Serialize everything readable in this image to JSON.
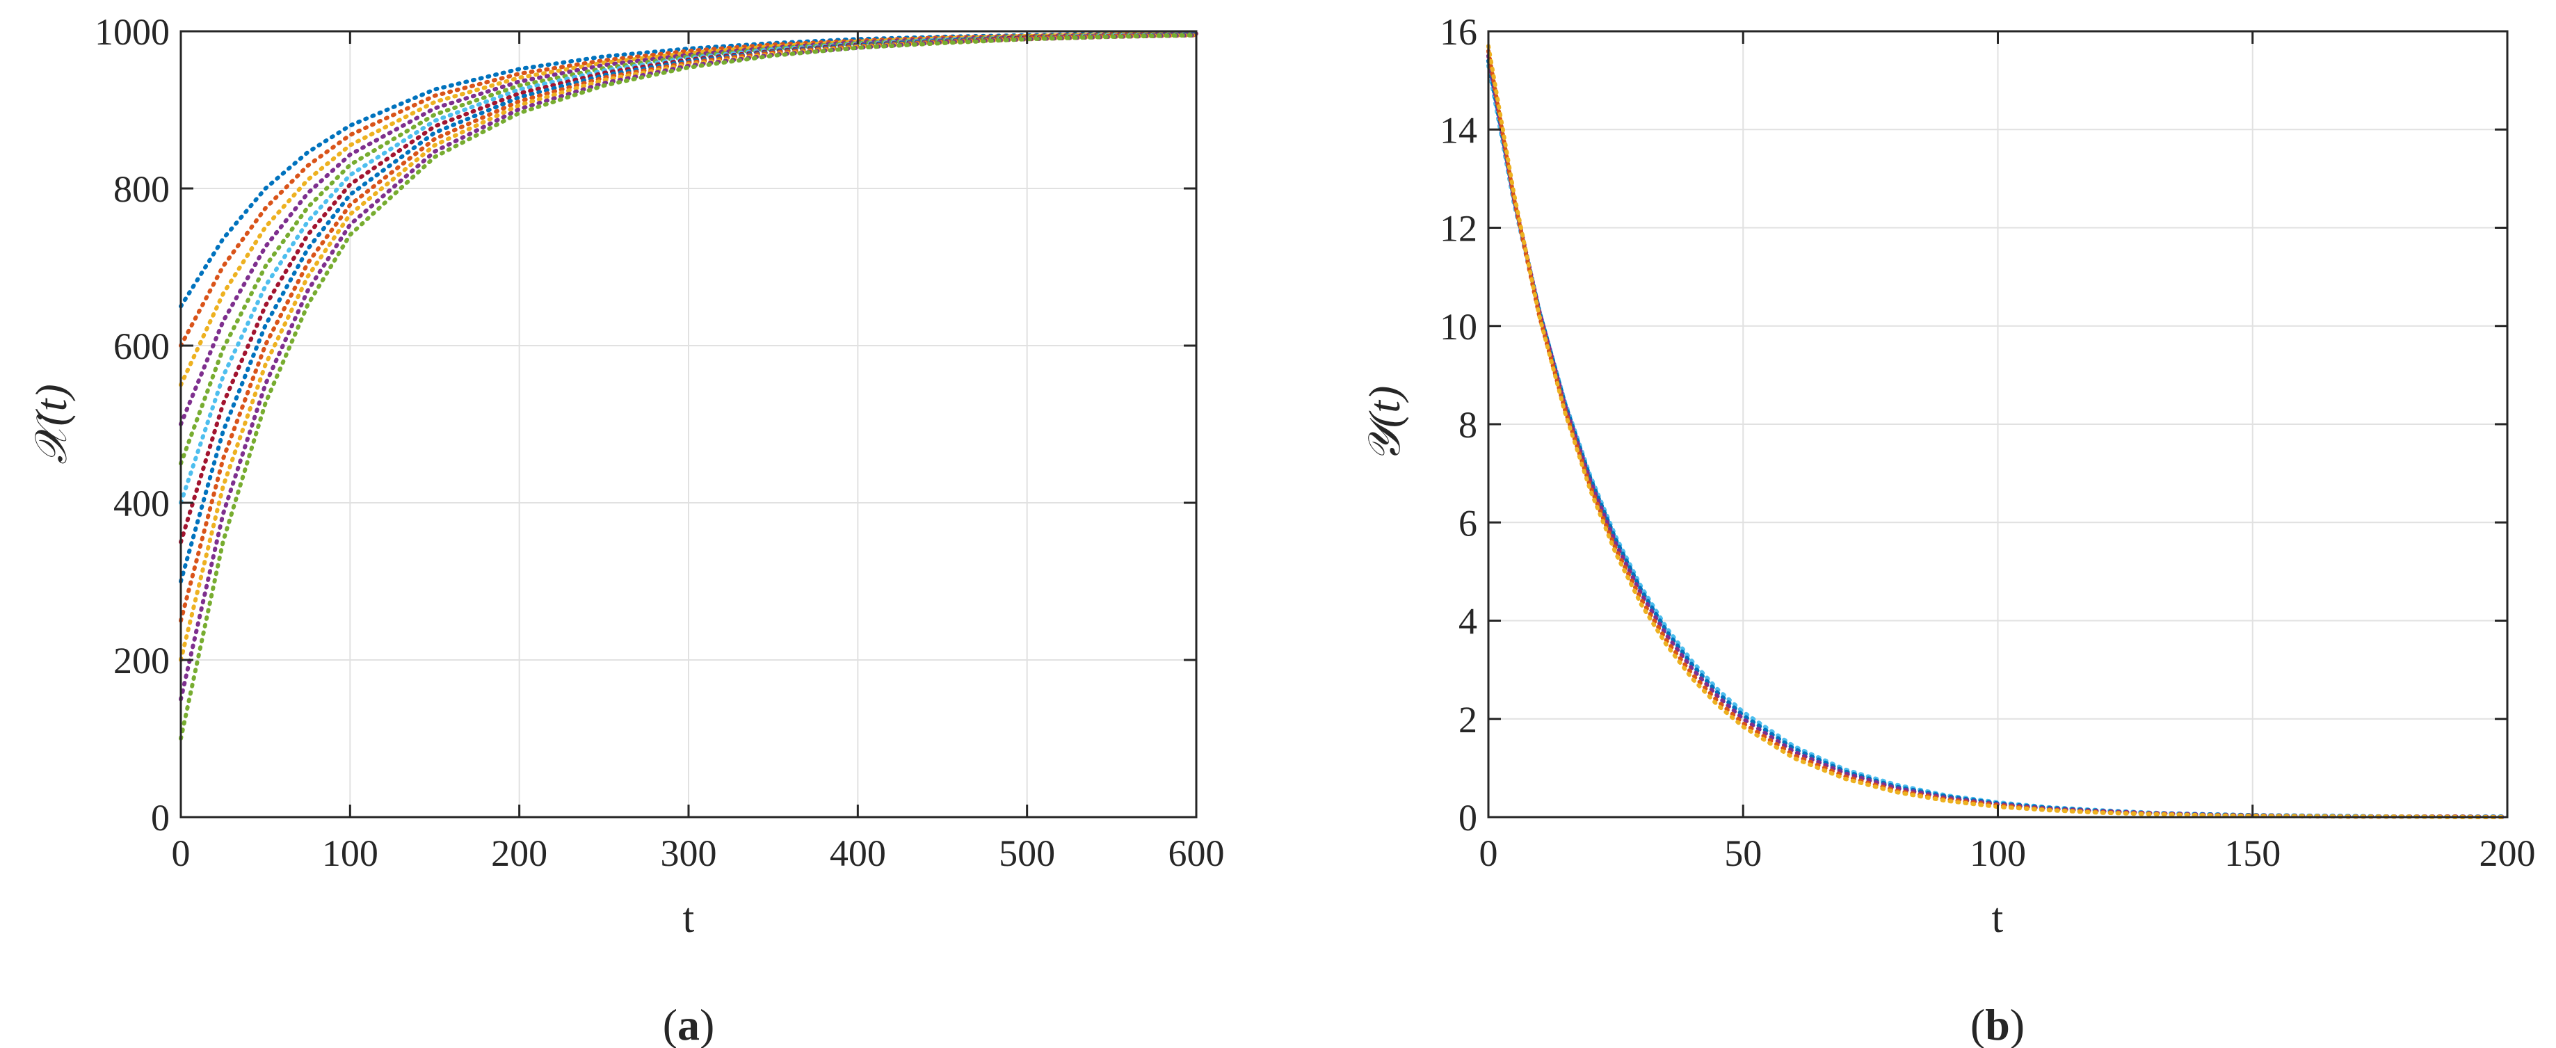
{
  "chart_data": [
    {
      "type": "line",
      "panel_caption": {
        "open": "(",
        "letter": "a",
        "close": ")"
      },
      "xlabel": "t",
      "ylabel_symbol": "𝒳",
      "ylabel_arg": "(t)",
      "xlim": [
        0,
        600
      ],
      "ylim": [
        0,
        1000
      ],
      "xticks": [
        0,
        100,
        200,
        300,
        400,
        500,
        600
      ],
      "yticks": [
        0,
        200,
        400,
        600,
        800,
        1000
      ],
      "grid": true,
      "line_style": "dotted",
      "x": [
        0,
        25,
        50,
        75,
        100,
        150,
        200,
        250,
        300,
        350,
        400,
        450,
        500,
        550,
        600
      ],
      "series": [
        {
          "color": "#0072BD",
          "values": [
            650,
            736,
            800,
            846,
            880,
            926,
            952,
            968,
            978,
            985,
            990,
            993,
            995,
            997,
            998
          ]
        },
        {
          "color": "#D95319",
          "values": [
            600,
            701,
            775,
            829,
            868,
            918,
            946,
            963,
            975,
            983,
            988,
            992,
            994,
            996,
            997
          ]
        },
        {
          "color": "#EDB120",
          "values": [
            550,
            666,
            751,
            811,
            855,
            910,
            941,
            960,
            972,
            981,
            987,
            991,
            994,
            996,
            997
          ]
        },
        {
          "color": "#7E2F8E",
          "values": [
            500,
            631,
            726,
            794,
            843,
            902,
            936,
            957,
            970,
            979,
            986,
            990,
            993,
            995,
            997
          ]
        },
        {
          "color": "#77AC30",
          "values": [
            450,
            596,
            701,
            776,
            830,
            894,
            931,
            953,
            968,
            978,
            985,
            989,
            993,
            995,
            996
          ]
        },
        {
          "color": "#4DBEEE",
          "values": [
            400,
            561,
            676,
            758,
            817,
            886,
            926,
            950,
            966,
            977,
            984,
            989,
            992,
            995,
            996
          ]
        },
        {
          "color": "#A2142F",
          "values": [
            350,
            526,
            651,
            741,
            805,
            879,
            921,
            947,
            964,
            975,
            983,
            988,
            992,
            994,
            996
          ]
        },
        {
          "color": "#0072BD",
          "values": [
            300,
            491,
            626,
            723,
            792,
            871,
            916,
            944,
            962,
            974,
            982,
            988,
            991,
            994,
            996
          ]
        },
        {
          "color": "#D95319",
          "values": [
            250,
            456,
            601,
            705,
            779,
            863,
            911,
            941,
            960,
            973,
            981,
            987,
            991,
            994,
            995
          ]
        },
        {
          "color": "#EDB120",
          "values": [
            200,
            421,
            576,
            688,
            767,
            855,
            906,
            938,
            958,
            971,
            980,
            986,
            990,
            993,
            995
          ]
        },
        {
          "color": "#7E2F8E",
          "values": [
            150,
            386,
            551,
            670,
            754,
            847,
            901,
            934,
            956,
            970,
            979,
            986,
            990,
            993,
            995
          ]
        },
        {
          "color": "#77AC30",
          "values": [
            100,
            351,
            527,
            652,
            741,
            840,
            896,
            931,
            954,
            969,
            979,
            985,
            990,
            993,
            995
          ]
        }
      ]
    },
    {
      "type": "line",
      "panel_caption": {
        "open": "(",
        "letter": "b",
        "close": ")"
      },
      "xlabel": "t",
      "ylabel_symbol": "𝒴",
      "ylabel_arg": "(t)",
      "xlim": [
        0,
        200
      ],
      "ylim": [
        0,
        16
      ],
      "xticks": [
        0,
        50,
        100,
        150,
        200
      ],
      "yticks": [
        0,
        2,
        4,
        6,
        8,
        10,
        12,
        14,
        16
      ],
      "grid": true,
      "line_style": "dotted",
      "x": [
        0,
        5,
        10,
        15,
        20,
        25,
        30,
        35,
        40,
        45,
        50,
        60,
        70,
        80,
        90,
        100,
        110,
        120,
        130,
        140,
        150,
        160,
        170,
        180,
        190,
        200
      ],
      "series": [
        {
          "color": "#4DBEEE",
          "values": [
            15.3,
            12.5,
            10.3,
            8.46,
            6.95,
            5.71,
            4.69,
            3.85,
            3.17,
            2.6,
            2.14,
            1.44,
            0.97,
            0.66,
            0.44,
            0.3,
            0.2,
            0.14,
            0.09,
            0.06,
            0.04,
            0.03,
            0.02,
            0.01,
            0.01,
            0.01
          ]
        },
        {
          "color": "#0072BD",
          "values": [
            15.4,
            12.6,
            10.3,
            8.43,
            6.9,
            5.65,
            4.62,
            3.78,
            3.1,
            2.53,
            2.07,
            1.39,
            0.93,
            0.62,
            0.42,
            0.28,
            0.19,
            0.13,
            0.08,
            0.06,
            0.04,
            0.03,
            0.02,
            0.01,
            0.01,
            0.01
          ]
        },
        {
          "color": "#7E2F8E",
          "values": [
            15.5,
            12.6,
            10.3,
            8.39,
            6.84,
            5.57,
            4.54,
            3.7,
            3.02,
            2.46,
            2.0,
            1.33,
            0.89,
            0.59,
            0.39,
            0.26,
            0.17,
            0.12,
            0.08,
            0.05,
            0.03,
            0.02,
            0.01,
            0.01,
            0.01,
            0.0
          ]
        },
        {
          "color": "#D95319",
          "values": [
            15.6,
            12.6,
            10.2,
            8.3,
            6.73,
            5.46,
            4.43,
            3.59,
            2.91,
            2.36,
            1.91,
            1.26,
            0.83,
            0.54,
            0.36,
            0.24,
            0.15,
            0.1,
            0.07,
            0.04,
            0.03,
            0.02,
            0.01,
            0.01,
            0.01,
            0.0
          ]
        },
        {
          "color": "#EDB120",
          "values": [
            15.7,
            12.7,
            10.2,
            8.25,
            6.66,
            5.37,
            4.33,
            3.5,
            2.82,
            2.28,
            1.84,
            1.2,
            0.78,
            0.51,
            0.33,
            0.21,
            0.14,
            0.09,
            0.06,
            0.04,
            0.02,
            0.02,
            0.01,
            0.01,
            0.0,
            0.0
          ]
        }
      ]
    }
  ]
}
